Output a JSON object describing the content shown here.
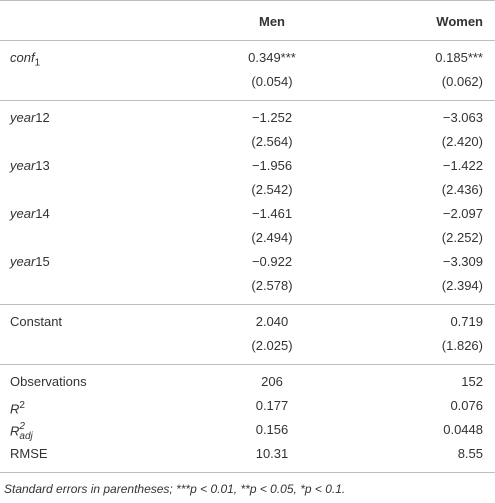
{
  "table": {
    "header": {
      "men": "Men",
      "women": "Women"
    },
    "groups": [
      {
        "rows": [
          {
            "label": {
              "base": "conf",
              "sub": "1"
            },
            "men": "0.349***",
            "women": "0.185***"
          },
          {
            "men": "(0.054)",
            "women": "(0.062)"
          }
        ]
      },
      {
        "rows": [
          {
            "label": {
              "base": "year",
              "suffix": "12"
            },
            "men": "−1.252",
            "women": "−3.063"
          },
          {
            "men": "(2.564)",
            "women": "(2.420)"
          },
          {
            "label": {
              "base": "year",
              "suffix": "13"
            },
            "men": "−1.956",
            "women": "−1.422"
          },
          {
            "men": "(2.542)",
            "women": "(2.436)"
          },
          {
            "label": {
              "base": "year",
              "suffix": "14"
            },
            "men": "−1.461",
            "women": "−2.097"
          },
          {
            "men": "(2.494)",
            "women": "(2.252)"
          },
          {
            "label": {
              "base": "year",
              "suffix": "15"
            },
            "men": "−0.922",
            "women": "−3.309"
          },
          {
            "men": "(2.578)",
            "women": "(2.394)"
          }
        ]
      },
      {
        "rows": [
          {
            "label": {
              "text": "Constant"
            },
            "men": "2.040",
            "women": "0.719"
          },
          {
            "men": "(2.025)",
            "women": "(1.826)"
          }
        ]
      },
      {
        "rows": [
          {
            "label": {
              "text": "Observations"
            },
            "men": "206",
            "women": "152"
          },
          {
            "label": {
              "base": "R",
              "sup": "2"
            },
            "men": "0.177",
            "women": "0.076"
          },
          {
            "label": {
              "base": "R",
              "sup": "2",
              "sub": "adj"
            },
            "men": "0.156",
            "women": "0.0448"
          },
          {
            "label": {
              "text": "RMSE"
            },
            "men": "10.31",
            "women": "8.55"
          }
        ]
      }
    ],
    "footnote": "Standard errors in parentheses; ***p < 0.01, **p < 0.05, *p < 0.1."
  }
}
